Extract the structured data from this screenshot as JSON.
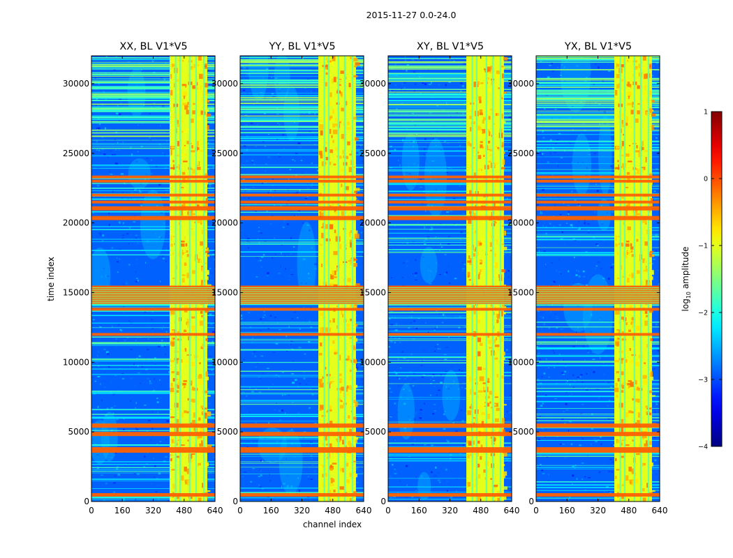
{
  "figure_title": "2015-11-27 0.0-24.0",
  "chart_data": {
    "type": "heatmap",
    "suptitle": "2015-11-27 0.0-24.0",
    "xlabel": "channel index",
    "ylabel": "time index",
    "xlim": [
      0,
      640
    ],
    "ylim": [
      0,
      32000
    ],
    "xticks": [
      0,
      160,
      320,
      480,
      640
    ],
    "yticks": [
      0,
      5000,
      10000,
      15000,
      20000,
      25000,
      30000
    ],
    "panels": [
      {
        "title": "XX, BL V1*V5",
        "polarization": "XX"
      },
      {
        "title": "YY, BL V1*V5",
        "polarization": "YY"
      },
      {
        "title": "XY, BL V1*V5",
        "polarization": "XY"
      },
      {
        "title": "YX, BL V1*V5",
        "polarization": "YX"
      }
    ],
    "colorbar": {
      "label": "log10 amplitude",
      "label_base": "log",
      "label_sub": "10",
      "label_rest": " amplitude",
      "range": [
        -4,
        1
      ],
      "ticks": [
        "1",
        "0",
        "−1",
        "−2",
        "−3",
        "−4"
      ],
      "colormap": "jet"
    },
    "bright_channel_range": [
      405,
      600
    ],
    "rfi_time_bands": [
      [
        350,
        600
      ],
      [
        3500,
        3900
      ],
      [
        4700,
        5000
      ],
      [
        5300,
        5600
      ],
      [
        11900,
        12100
      ],
      [
        13700,
        13900
      ],
      [
        14200,
        15500
      ],
      [
        20200,
        20500
      ],
      [
        20900,
        21200
      ],
      [
        21400,
        21600
      ],
      [
        21900,
        22100
      ],
      [
        22900,
        23100
      ],
      [
        23200,
        23400
      ]
    ]
  }
}
